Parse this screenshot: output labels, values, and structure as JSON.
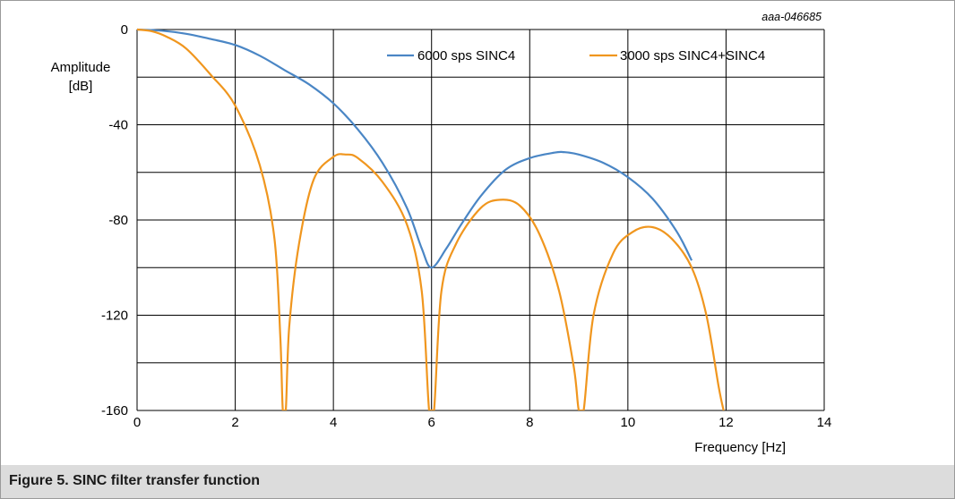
{
  "figure": {
    "caption": "Figure 5.  SINC filter transfer function",
    "doc_id": "aaa-046685"
  },
  "chart_data": {
    "type": "line",
    "xlabel": "Frequency [Hz]",
    "ylabel_line1": "Amplitude",
    "ylabel_line2": "[dB]",
    "xlim": [
      0,
      14
    ],
    "ylim": [
      -160,
      0
    ],
    "x_ticks": [
      0,
      2,
      4,
      6,
      8,
      10,
      12,
      14
    ],
    "y_ticks": [
      0,
      -40,
      -80,
      -120,
      -160
    ],
    "x_tick_labels": [
      "0",
      "2",
      "4",
      "6",
      "8",
      "10",
      "12",
      "14"
    ],
    "y_tick_labels": [
      "0",
      "-40",
      "-80",
      "-120",
      "-160"
    ],
    "grid": true,
    "legend_position": "top-right",
    "series": [
      {
        "name": "6000 sps SINC4",
        "color": "#4a86c5",
        "x": [
          0,
          0.5,
          1,
          1.5,
          2,
          2.5,
          3,
          3.5,
          4,
          4.5,
          5,
          5.5,
          5.8,
          6.0,
          6.3,
          6.6,
          7,
          7.5,
          8,
          8.5,
          8.7,
          9,
          9.5,
          10,
          10.5,
          11,
          11.3
        ],
        "values": [
          0,
          -0.5,
          -1.8,
          -4,
          -6.5,
          -11,
          -17,
          -23,
          -31,
          -42,
          -56,
          -75,
          -92,
          -100,
          -92,
          -82,
          -70,
          -59,
          -54,
          -51.7,
          -51.5,
          -52.5,
          -56,
          -62,
          -71,
          -85,
          -97
        ]
      },
      {
        "name": "3000 sps SINC4+SINC4",
        "color": "#f0961e",
        "x": [
          0,
          0.3,
          0.6,
          1,
          1.5,
          2,
          2.5,
          2.8,
          2.92,
          2.97,
          3.03,
          3.1,
          3.3,
          3.6,
          4,
          4.25,
          4.5,
          5,
          5.5,
          5.8,
          5.95,
          6.05,
          6.2,
          6.5,
          7,
          7.4,
          7.8,
          8.2,
          8.6,
          8.9,
          9.0,
          9.1,
          9.3,
          9.7,
          10.1,
          10.5,
          10.9,
          11.3,
          11.6,
          11.85,
          11.95
        ],
        "values": [
          0,
          -0.7,
          -3,
          -8,
          -19,
          -32,
          -57,
          -88,
          -130,
          -160,
          -160,
          -125,
          -90,
          -63,
          -53.5,
          -52.5,
          -54,
          -64,
          -82,
          -110,
          -160,
          -160,
          -110,
          -90,
          -75,
          -71.5,
          -74,
          -86,
          -110,
          -142,
          -160,
          -160,
          -120,
          -94,
          -85,
          -83,
          -88,
          -100,
          -120,
          -150,
          -160
        ]
      }
    ]
  }
}
